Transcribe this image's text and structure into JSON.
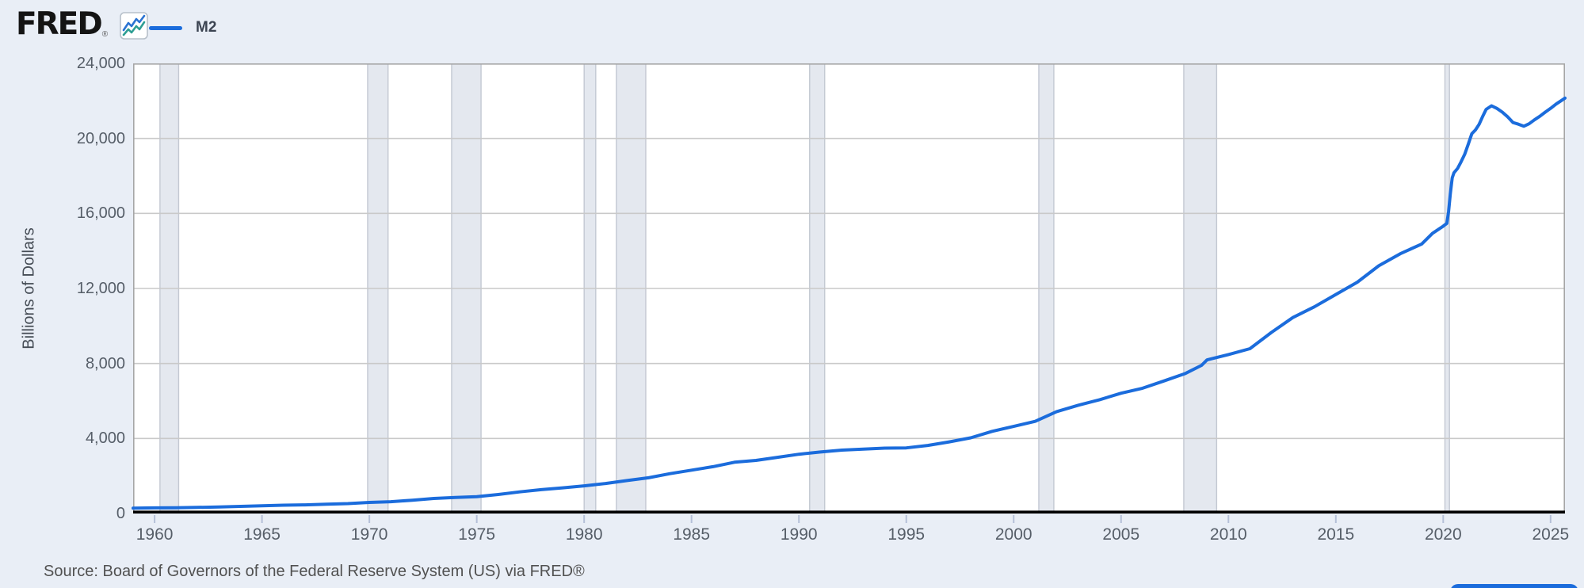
{
  "header": {
    "logo_text": "FRED",
    "registered_mark": "®",
    "logo_icon": "line-chart-icon",
    "legend": {
      "label": "M2",
      "swatch_color": "#1b6cdc"
    }
  },
  "source": {
    "text": "Source: Board of Governors of the Federal Reserve System (US) via FRED®"
  },
  "corner_button": {
    "color": "#1b6cdc"
  },
  "colors": {
    "page_bg": "#e9eef6",
    "plot_bg": "#ffffff",
    "line": "#1b6cdc",
    "grid": "#c9c9c9",
    "plot_border": "#a6a6a6",
    "axis": "#000000",
    "recession_fill": "#e4e8ef",
    "recession_edge": "#c3c8d2",
    "tick_mark": "#b5c0d8",
    "icon_blue": "#2b73d2",
    "icon_teal": "#2e9e93"
  },
  "chart_data": {
    "type": "line",
    "title": "",
    "xlabel": "",
    "ylabel": "Billions of Dollars",
    "xlim": [
      1959.0,
      2025.67
    ],
    "ylim": [
      0,
      24000
    ],
    "grid": "horizontal",
    "legend_position": "top-left",
    "xticks": [
      1960,
      1965,
      1970,
      1975,
      1980,
      1985,
      1990,
      1995,
      2000,
      2005,
      2010,
      2015,
      2020,
      2025
    ],
    "yticks": [
      0,
      4000,
      8000,
      12000,
      16000,
      20000,
      24000
    ],
    "ytick_labels": [
      "0",
      "4,000",
      "8,000",
      "12,000",
      "16,000",
      "20,000",
      "24,000"
    ],
    "recession_bands": [
      [
        1960.25,
        1961.12
      ],
      [
        1969.92,
        1970.87
      ],
      [
        1973.83,
        1975.2
      ],
      [
        1980.0,
        1980.54
      ],
      [
        1981.5,
        1982.87
      ],
      [
        1990.5,
        1991.2
      ],
      [
        2001.17,
        2001.87
      ],
      [
        2007.92,
        2009.45
      ],
      [
        2020.08,
        2020.29
      ]
    ],
    "series": [
      {
        "name": "M2",
        "color": "#1b6cdc",
        "x": [
          1959,
          1960,
          1961,
          1962,
          1963,
          1964,
          1965,
          1966,
          1967,
          1968,
          1969,
          1970,
          1971,
          1972,
          1973,
          1974,
          1975,
          1976,
          1977,
          1978,
          1979,
          1980,
          1981,
          1982,
          1983,
          1984,
          1985,
          1986,
          1987,
          1988,
          1989,
          1990,
          1991,
          1992,
          1993,
          1994,
          1995,
          1996,
          1997,
          1998,
          1999,
          2000,
          2001,
          2002,
          2003,
          2004,
          2005,
          2006,
          2007,
          2008,
          2008.75,
          2009,
          2010,
          2011,
          2012,
          2013,
          2014,
          2015,
          2016,
          2017,
          2018,
          2019,
          2019.5,
          2020,
          2020.17,
          2020.25,
          2020.33,
          2020.42,
          2020.5,
          2020.67,
          2020.83,
          2021,
          2021.17,
          2021.33,
          2021.5,
          2021.67,
          2021.83,
          2022,
          2022.25,
          2022.5,
          2022.75,
          2023,
          2023.25,
          2023.5,
          2023.75,
          2024,
          2024.25,
          2024.5,
          2024.75,
          2025,
          2025.25,
          2025.5,
          2025.67
        ],
        "y": [
          287,
          298,
          305,
          325,
          350,
          380,
          410,
          443,
          460,
          498,
          530,
          590,
          628,
          710,
          802,
          856,
          902,
          1016,
          1152,
          1271,
          1367,
          1474,
          1600,
          1756,
          1906,
          2127,
          2311,
          2497,
          2734,
          2833,
          2996,
          3160,
          3278,
          3379,
          3432,
          3485,
          3498,
          3628,
          3818,
          4035,
          4381,
          4644,
          4913,
          5434,
          5772,
          6067,
          6413,
          6680,
          7070,
          7469,
          7900,
          8190,
          8478,
          8790,
          9653,
          10450,
          11020,
          11680,
          12334,
          13210,
          13850,
          14370,
          14940,
          15320,
          15470,
          16100,
          17050,
          17900,
          18170,
          18400,
          18750,
          19150,
          19700,
          20250,
          20450,
          20750,
          21150,
          21550,
          21740,
          21600,
          21400,
          21150,
          20850,
          20760,
          20650,
          20780,
          20990,
          21180,
          21400,
          21600,
          21830,
          22020,
          22150
        ]
      }
    ]
  }
}
